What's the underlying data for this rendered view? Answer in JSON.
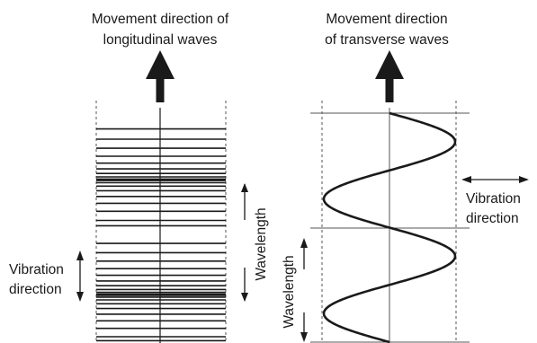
{
  "longitudinal": {
    "title_line1": "Movement direction of",
    "title_line2": "longitudinal waves",
    "wavelength_label": "Wavelength",
    "vibration_line1": "Vibration",
    "vibration_line2": "direction",
    "compression_lines_top": 19,
    "compression_lines_bottom": 21
  },
  "transverse": {
    "title_line1": "Movement direction",
    "title_line2": "of transverse waves",
    "wavelength_label": "Wavelength",
    "vibration_line1": "Vibration",
    "vibration_line2": "direction",
    "cycles_shown": 2
  },
  "colors": {
    "ink": "#1a1a1a",
    "guide": "#555555"
  }
}
